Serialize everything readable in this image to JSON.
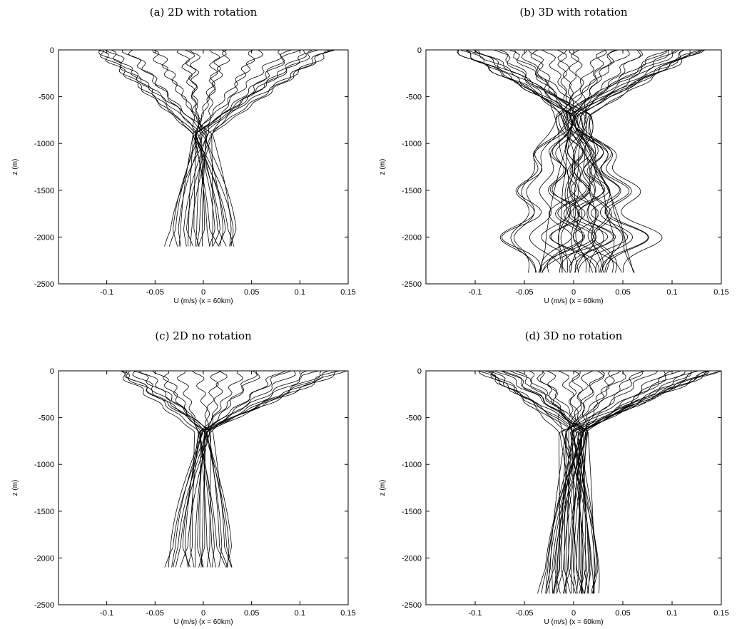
{
  "chart_data": [
    {
      "type": "line",
      "panel": "a",
      "title": "(a) 2D with rotation",
      "xlabel": "U (m/s) (x = 60km)",
      "ylabel": "z (m)",
      "xlim": [
        -0.15,
        0.15
      ],
      "ylim": [
        -2500,
        0
      ],
      "xticks": [
        -0.1,
        -0.05,
        0,
        0.05,
        0.1,
        0.15
      ],
      "xtick_labels": [
        "-0.1",
        "-0.05",
        "0",
        "0.05",
        "0.1",
        "0.15"
      ],
      "yticks": [
        0,
        -500,
        -1000,
        -1500,
        -2000,
        -2500
      ],
      "ytick_labels": [
        "0",
        "-500",
        "-1000",
        "-1500",
        "-2000",
        "-2500"
      ],
      "grid": false,
      "profiles": {
        "count": 26,
        "bottom_depth": -2100,
        "surface_range": [
          -0.11,
          0.135
        ],
        "neck_depth": -900,
        "neck_halfwidth": 0.012,
        "lower_range": [
          -0.035,
          0.035
        ],
        "bottom_halfwidth": 0.03,
        "lobes": []
      }
    },
    {
      "type": "line",
      "panel": "b",
      "title": "(b) 3D with rotation",
      "xlabel": "U (m/s) (x = 60km)",
      "ylabel": "z (m)",
      "xlim": [
        -0.15,
        0.15
      ],
      "ylim": [
        -2500,
        0
      ],
      "xticks": [
        -0.1,
        -0.05,
        0,
        0.05,
        0.1,
        0.15
      ],
      "xtick_labels": [
        "-0.1",
        "-0.05",
        "0",
        "0.05",
        "0.1",
        "0.15"
      ],
      "yticks": [
        0,
        -500,
        -1000,
        -1500,
        -2000,
        -2500
      ],
      "ytick_labels": [
        "0",
        "-500",
        "-1000",
        "-1500",
        "-2000",
        "-2500"
      ],
      "grid": false,
      "profiles": {
        "count": 40,
        "bottom_depth": -2380,
        "surface_range": [
          -0.12,
          0.13
        ],
        "neck_depth": -700,
        "neck_halfwidth": 0.02,
        "lower_range": [
          -0.045,
          0.055
        ],
        "bottom_halfwidth": 0.04,
        "lobes": [
          {
            "depth": -1100,
            "halfwidth": 0.035
          },
          {
            "depth": -1500,
            "halfwidth": 0.045
          },
          {
            "depth": -2000,
            "halfwidth": 0.055
          }
        ]
      }
    },
    {
      "type": "line",
      "panel": "c",
      "title": "(c) 2D no rotation",
      "xlabel": "U (m/s) (x = 60km)",
      "ylabel": "z (m)",
      "xlim": [
        -0.15,
        0.15
      ],
      "ylim": [
        -2500,
        0
      ],
      "xticks": [
        -0.1,
        -0.05,
        0,
        0.05,
        0.1,
        0.15
      ],
      "xtick_labels": [
        "-0.1",
        "-0.05",
        "0",
        "0.05",
        "0.1",
        "0.15"
      ],
      "yticks": [
        0,
        -500,
        -1000,
        -1500,
        -2000,
        -2500
      ],
      "ytick_labels": [
        "0",
        "-500",
        "-1000",
        "-1500",
        "-2000",
        "-2500"
      ],
      "grid": false,
      "profiles": {
        "count": 26,
        "bottom_depth": -2100,
        "surface_range": [
          -0.09,
          0.145
        ],
        "neck_depth": -650,
        "neck_halfwidth": 0.01,
        "lower_range": [
          -0.035,
          0.03
        ],
        "bottom_halfwidth": 0.03,
        "lobes": []
      }
    },
    {
      "type": "line",
      "panel": "d",
      "title": "(d) 3D no rotation",
      "xlabel": "U (m/s) (x = 60km)",
      "ylabel": "z (m)",
      "xlim": [
        -0.15,
        0.15
      ],
      "ylim": [
        -2500,
        0
      ],
      "xticks": [
        -0.1,
        -0.05,
        0,
        0.05,
        0.1,
        0.15
      ],
      "xtick_labels": [
        "-0.1",
        "-0.05",
        "0",
        "0.05",
        "0.1",
        "0.15"
      ],
      "yticks": [
        0,
        -500,
        -1000,
        -1500,
        -2000,
        -2500
      ],
      "ytick_labels": [
        "0",
        "-500",
        "-1000",
        "-1500",
        "-2000",
        "-2500"
      ],
      "grid": false,
      "profiles": {
        "count": 40,
        "bottom_depth": -2380,
        "surface_range": [
          -0.095,
          0.145
        ],
        "neck_depth": -650,
        "neck_halfwidth": 0.015,
        "lower_range": [
          -0.03,
          0.027
        ],
        "bottom_halfwidth": 0.025,
        "lobes": []
      }
    }
  ],
  "colors": {
    "line": "#000000",
    "background": "#ffffff"
  }
}
